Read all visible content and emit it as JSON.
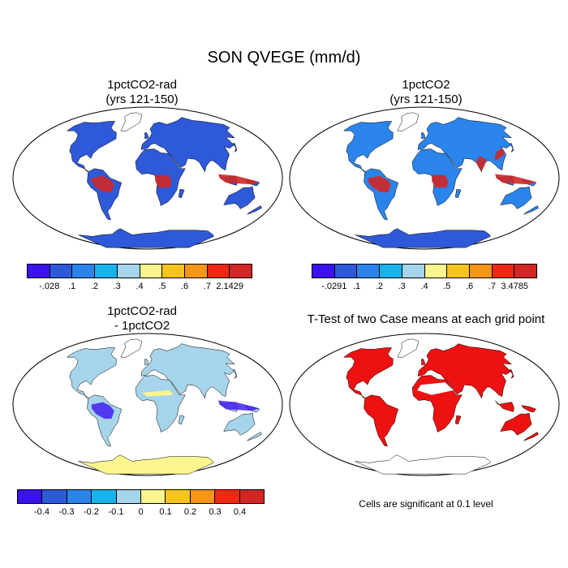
{
  "title": "SON QVEGE (mm/d)",
  "colors": {
    "ocean": "#ffffff",
    "outline": "#000000",
    "positive_scale": [
      "#3b12ef",
      "#2e59d9",
      "#2b84ec",
      "#15b4ee",
      "#a6d4ea",
      "#fbf58e",
      "#f7c51a",
      "#f69516",
      "#f02813",
      "#d02726"
    ],
    "diff_scale": [
      "#3b12ef",
      "#2e59d9",
      "#2b84ec",
      "#15b4ee",
      "#a6d4ea",
      "#fbf58e",
      "#f7c51a",
      "#f69516",
      "#f02813",
      "#d02726"
    ],
    "significance": "#ee1111"
  },
  "panels": [
    {
      "id": "p1",
      "title_line1": "1pctCO2-rad",
      "title_line2": "(yrs 121-150)",
      "colorbar": {
        "labels": [
          "-.028",
          ".1",
          ".2",
          ".3",
          ".4",
          ".5",
          ".6",
          ".7",
          "2.1429"
        ],
        "swatch_index": [
          0,
          1,
          2,
          3,
          4,
          5,
          6,
          7,
          8,
          9
        ]
      },
      "land_fill": "#2e59d9",
      "hotspots": [
        "amazon",
        "congo",
        "indonesia"
      ]
    },
    {
      "id": "p2",
      "title_line1": "1pctCO2",
      "title_line2": "(yrs 121-150)",
      "colorbar": {
        "labels": [
          "-.0291",
          ".1",
          ".2",
          ".3",
          ".4",
          ".5",
          ".6",
          ".7",
          "3.4785"
        ],
        "swatch_index": [
          0,
          1,
          2,
          3,
          4,
          5,
          6,
          7,
          8,
          9
        ]
      },
      "land_fill": "#2b84ec",
      "hotspots": [
        "amazon",
        "congo",
        "indonesia",
        "india",
        "china"
      ]
    },
    {
      "id": "p3",
      "title_line1": "1pctCO2-rad",
      "title_line2": "- 1pctCO2",
      "colorbar": {
        "labels": [
          "-0.4",
          "-0.3",
          "-0.2",
          "-0.1",
          "0",
          "0.1",
          "0.2",
          "0.3",
          "0.4"
        ],
        "swatch_index": [
          0,
          1,
          2,
          3,
          4,
          5,
          6,
          7,
          8,
          9
        ]
      },
      "land_fill": "#a6d4ea"
    },
    {
      "id": "p4",
      "title_line1": "T-Test of two Case means at each grid point",
      "note": "Cells are significant at 0.1 level"
    }
  ]
}
